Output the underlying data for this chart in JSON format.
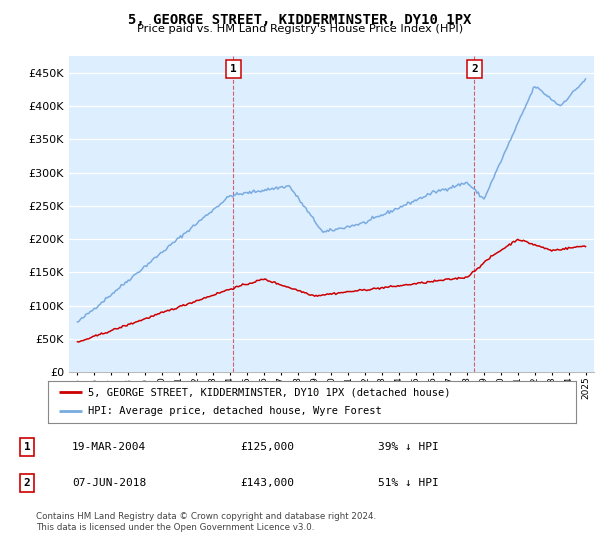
{
  "title": "5, GEORGE STREET, KIDDERMINSTER, DY10 1PX",
  "subtitle": "Price paid vs. HM Land Registry's House Price Index (HPI)",
  "ylim": [
    0,
    475000
  ],
  "yticks": [
    0,
    50000,
    100000,
    150000,
    200000,
    250000,
    300000,
    350000,
    400000,
    450000
  ],
  "ytick_labels": [
    "£0",
    "£50K",
    "£100K",
    "£150K",
    "£200K",
    "£250K",
    "£300K",
    "£350K",
    "£400K",
    "£450K"
  ],
  "hpi_color": "#7aabe0",
  "price_color": "#cc0000",
  "background_color": "#ddeeff",
  "plot_bg": "#ffffff",
  "legend_label_price": "5, GEORGE STREET, KIDDERMINSTER, DY10 1PX (detached house)",
  "legend_label_hpi": "HPI: Average price, detached house, Wyre Forest",
  "annotation1_label": "1",
  "annotation1_date": "19-MAR-2004",
  "annotation1_price": "£125,000",
  "annotation1_pct": "39% ↓ HPI",
  "annotation1_year": 2004.21,
  "annotation1_value": 125000,
  "annotation2_label": "2",
  "annotation2_date": "07-JUN-2018",
  "annotation2_price": "£143,000",
  "annotation2_pct": "51% ↓ HPI",
  "annotation2_year": 2018.44,
  "annotation2_value": 143000,
  "footer": "Contains HM Land Registry data © Crown copyright and database right 2024.\nThis data is licensed under the Open Government Licence v3.0.",
  "start_year": 1995,
  "end_year": 2025
}
